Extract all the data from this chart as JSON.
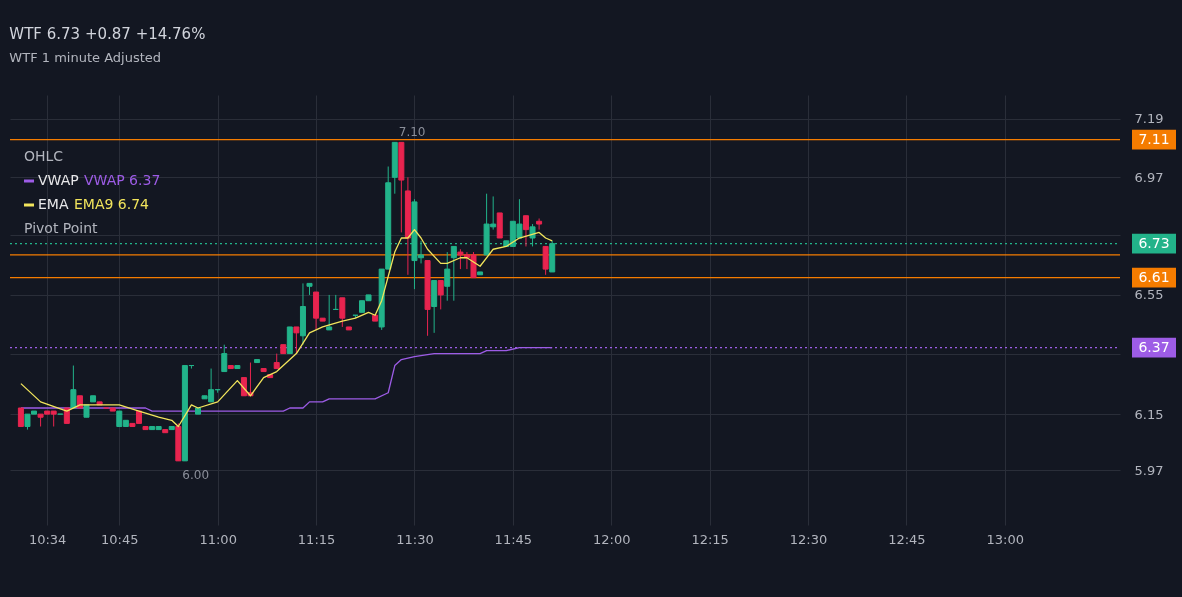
{
  "chart_data": {
    "type": "candlestick",
    "title": "WTF 6.73 +0.87 +14.76%",
    "subtitle": "WTF  1 minute  Adjusted",
    "x": [
      10.5,
      10.5167,
      10.5333,
      10.55,
      10.5667,
      10.5833,
      10.6,
      10.6167,
      10.6333,
      10.65,
      10.6667,
      10.6833,
      10.7,
      10.7167,
      10.7333,
      10.75,
      10.7667,
      10.7833,
      10.8,
      10.8167,
      10.8333,
      10.85,
      10.8667,
      10.8833,
      10.9,
      10.9167,
      10.9333,
      10.95,
      10.9667,
      10.9833,
      11,
      11.0167,
      11.0333,
      11.05,
      11.0667,
      11.0833,
      11.1,
      11.1167,
      11.1333,
      11.15,
      11.1667,
      11.1833,
      11.2,
      11.2167,
      11.2333,
      11.25,
      11.2667,
      11.2833,
      11.3,
      11.3167,
      11.3333,
      11.35,
      11.3667,
      11.3833,
      11.4,
      11.4167,
      11.4333,
      11.45,
      11.4667,
      11.4833,
      11.5,
      11.5167,
      11.5333,
      11.55,
      11.5667,
      11.5833,
      11.6,
      11.6167,
      11.6333,
      11.65,
      11.6667,
      11.6833,
      11.7,
      11.7167,
      11.7333,
      11.75,
      11.7667,
      11.7833,
      11.8,
      11.8167,
      11.8333,
      11.85
    ],
    "ohlc": [
      [
        6.17,
        6.17,
        6.11,
        6.11
      ],
      [
        6.11,
        6.15,
        6.1,
        6.15
      ],
      [
        6.15,
        6.16,
        6.15,
        6.16
      ],
      [
        6.15,
        6.15,
        6.11,
        6.14
      ],
      [
        6.16,
        6.16,
        6.15,
        6.15
      ],
      [
        6.16,
        6.16,
        6.11,
        6.15
      ],
      [
        6.15,
        6.15,
        6.15,
        6.15
      ],
      [
        6.17,
        6.17,
        6.12,
        6.12
      ],
      [
        6.17,
        6.31,
        6.17,
        6.23
      ],
      [
        6.21,
        6.21,
        6.17,
        6.17
      ],
      [
        6.14,
        6.18,
        6.14,
        6.18
      ],
      [
        6.19,
        6.21,
        6.19,
        6.21
      ],
      [
        6.19,
        6.19,
        6.18,
        6.18
      ],
      [
        6.17,
        6.17,
        6.17,
        6.17
      ],
      [
        6.17,
        6.17,
        6.16,
        6.16
      ],
      [
        6.11,
        6.16,
        6.11,
        6.16
      ],
      [
        6.11,
        6.13,
        6.11,
        6.13
      ],
      [
        6.12,
        6.12,
        6.11,
        6.11
      ],
      [
        6.16,
        6.16,
        6.12,
        6.12
      ],
      [
        6.11,
        6.11,
        6.1,
        6.1
      ],
      [
        6.1,
        6.11,
        6.1,
        6.11
      ],
      [
        6.1,
        6.11,
        6.1,
        6.11
      ],
      [
        6.1,
        6.1,
        6.09,
        6.09
      ],
      [
        6.1,
        6.11,
        6.1,
        6.11
      ],
      [
        6.11,
        6.12,
        6.0,
        6.0
      ],
      [
        6.0,
        6.31,
        6.0,
        6.31
      ],
      [
        6.31,
        6.31,
        6.3,
        6.31
      ],
      [
        6.15,
        6.17,
        6.15,
        6.17
      ],
      [
        6.2,
        6.21,
        6.2,
        6.21
      ],
      [
        6.19,
        6.3,
        6.19,
        6.23
      ],
      [
        6.23,
        6.23,
        6.22,
        6.23
      ],
      [
        6.29,
        6.38,
        6.29,
        6.35
      ],
      [
        6.31,
        6.31,
        6.3,
        6.3
      ],
      [
        6.3,
        6.31,
        6.3,
        6.31
      ],
      [
        6.27,
        6.27,
        6.21,
        6.21
      ],
      [
        6.22,
        6.32,
        6.21,
        6.21
      ],
      [
        6.32,
        6.33,
        6.32,
        6.33
      ],
      [
        6.3,
        6.3,
        6.29,
        6.29
      ],
      [
        6.28,
        6.28,
        6.27,
        6.27
      ],
      [
        6.32,
        6.35,
        6.3,
        6.3
      ],
      [
        6.38,
        6.38,
        6.35,
        6.35
      ],
      [
        6.35,
        6.44,
        6.35,
        6.44
      ],
      [
        6.44,
        6.44,
        6.35,
        6.42
      ],
      [
        6.41,
        6.59,
        6.38,
        6.51
      ],
      [
        6.58,
        6.59,
        6.55,
        6.59
      ],
      [
        6.56,
        6.56,
        6.43,
        6.47
      ],
      [
        6.47,
        6.47,
        6.46,
        6.46
      ],
      [
        6.43,
        6.55,
        6.43,
        6.44
      ],
      [
        6.5,
        6.55,
        6.5,
        6.5
      ],
      [
        6.54,
        6.54,
        6.44,
        6.47
      ],
      [
        6.44,
        6.44,
        6.43,
        6.43
      ],
      [
        6.48,
        6.48,
        6.47,
        6.48
      ],
      [
        6.49,
        6.53,
        6.49,
        6.53
      ],
      [
        6.53,
        6.55,
        6.53,
        6.55
      ],
      [
        6.48,
        6.48,
        6.46,
        6.46
      ],
      [
        6.44,
        6.64,
        6.43,
        6.64
      ],
      [
        6.64,
        7.01,
        6.64,
        6.95
      ],
      [
        6.97,
        7.1,
        6.91,
        7.1
      ],
      [
        7.1,
        7.1,
        6.77,
        6.96
      ],
      [
        6.92,
        6.97,
        6.62,
        6.75
      ],
      [
        6.67,
        6.89,
        6.57,
        6.88
      ],
      [
        6.68,
        6.74,
        6.66,
        6.69
      ],
      [
        6.67,
        6.67,
        6.41,
        6.5
      ],
      [
        6.51,
        6.6,
        6.42,
        6.6
      ],
      [
        6.6,
        6.6,
        6.5,
        6.55
      ],
      [
        6.58,
        6.7,
        6.53,
        6.64
      ],
      [
        6.68,
        6.72,
        6.53,
        6.72
      ],
      [
        6.7,
        6.71,
        6.64,
        6.69
      ],
      [
        6.69,
        6.7,
        6.64,
        6.68
      ],
      [
        6.69,
        6.7,
        6.61,
        6.61
      ],
      [
        6.62,
        6.63,
        6.62,
        6.63
      ],
      [
        6.69,
        6.91,
        6.69,
        6.8
      ],
      [
        6.79,
        6.9,
        6.78,
        6.8
      ],
      [
        6.84,
        6.84,
        6.75,
        6.75
      ],
      [
        6.72,
        6.74,
        6.72,
        6.74
      ],
      [
        6.72,
        6.81,
        6.72,
        6.81
      ],
      [
        6.75,
        6.89,
        6.75,
        6.8
      ],
      [
        6.83,
        6.83,
        6.72,
        6.78
      ],
      [
        6.75,
        6.8,
        6.72,
        6.79
      ],
      [
        6.81,
        6.82,
        6.78,
        6.8
      ],
      [
        6.72,
        6.72,
        6.62,
        6.64
      ],
      [
        6.63,
        6.74,
        6.63,
        6.73
      ]
    ],
    "colors": [
      "#e8244f",
      "#22b38a",
      "#22b38a",
      "#e8244f",
      "#e8244f",
      "#e8244f",
      "#22b38a",
      "#e8244f",
      "#22b38a",
      "#e8244f",
      "#22b38a",
      "#22b38a",
      "#e8244f",
      "#e8244f",
      "#e8244f",
      "#22b38a",
      "#22b38a",
      "#e8244f",
      "#e8244f",
      "#e8244f",
      "#22b38a",
      "#22b38a",
      "#e8244f",
      "#22b38a",
      "#e8244f",
      "#22b38a",
      "#22b38a",
      "#22b38a",
      "#22b38a",
      "#22b38a",
      "#22b38a",
      "#22b38a",
      "#e8244f",
      "#22b38a",
      "#e8244f",
      "#e8244f",
      "#22b38a",
      "#e8244f",
      "#e8244f",
      "#e8244f",
      "#e8244f",
      "#22b38a",
      "#e8244f",
      "#22b38a",
      "#22b38a",
      "#e8244f",
      "#e8244f",
      "#22b38a",
      "#22b38a",
      "#e8244f",
      "#e8244f",
      "#22b38a",
      "#22b38a",
      "#22b38a",
      "#e8244f",
      "#22b38a",
      "#22b38a",
      "#22b38a",
      "#e8244f",
      "#e8244f",
      "#22b38a",
      "#22b38a",
      "#e8244f",
      "#22b38a",
      "#e8244f",
      "#22b38a",
      "#22b38a",
      "#e8244f",
      "#e8244f",
      "#e8244f",
      "#22b38a",
      "#22b38a",
      "#22b38a",
      "#e8244f",
      "#22b38a",
      "#22b38a",
      "#22b38a",
      "#e8244f",
      "#22b38a",
      "#e8244f",
      "#e8244f",
      "#22b38a"
    ],
    "series": [
      {
        "name": "VWAP",
        "type": "line",
        "color": "#9d5ce6",
        "x": [
          10.5,
          10.8167,
          10.8333,
          11.1667,
          11.1833,
          11.2167,
          11.2333,
          11.2667,
          11.2833,
          11.4,
          11.4333,
          11.45,
          11.4667,
          11.5,
          11.55,
          11.6667,
          11.6833,
          11.7333,
          11.7667,
          11.85
        ],
        "values": [
          6.17,
          6.17,
          6.16,
          6.16,
          6.17,
          6.17,
          6.19,
          6.19,
          6.2,
          6.2,
          6.22,
          6.31,
          6.33,
          6.34,
          6.35,
          6.35,
          6.36,
          6.36,
          6.37,
          6.37
        ]
      },
      {
        "name": "EMA",
        "type": "line",
        "color": "#f2e55c",
        "x": [
          10.5,
          10.55,
          10.6167,
          10.65,
          10.7,
          10.75,
          10.8,
          10.85,
          10.8833,
          10.9,
          10.9333,
          10.95,
          11,
          11.05,
          11.0833,
          11.1167,
          11.15,
          11.1833,
          11.2,
          11.2333,
          11.2667,
          11.3167,
          11.35,
          11.3833,
          11.4,
          11.4167,
          11.45,
          11.4667,
          11.4833,
          11.5,
          11.5167,
          11.5333,
          11.5667,
          11.5833,
          11.6167,
          11.6333,
          11.6667,
          11.7,
          11.7333,
          11.7667,
          11.8167,
          11.8333,
          11.85
        ],
        "values": [
          6.25,
          6.19,
          6.16,
          6.18,
          6.18,
          6.18,
          6.16,
          6.14,
          6.13,
          6.11,
          6.18,
          6.17,
          6.19,
          6.26,
          6.21,
          6.27,
          6.29,
          6.33,
          6.35,
          6.42,
          6.44,
          6.46,
          6.47,
          6.49,
          6.48,
          6.53,
          6.7,
          6.75,
          6.75,
          6.78,
          6.75,
          6.71,
          6.66,
          6.66,
          6.68,
          6.68,
          6.65,
          6.71,
          6.72,
          6.75,
          6.77,
          6.75,
          6.74
        ]
      }
    ],
    "ref_lines": [
      {
        "axis": "y",
        "value": 7.11,
        "label": "7.11",
        "color": "#f57c00",
        "line_style": "solid"
      },
      {
        "axis": "y",
        "value": 6.69,
        "label": null,
        "color": "#f57c00",
        "line_style": "solid"
      },
      {
        "axis": "y",
        "value": 6.61,
        "label": "6.61",
        "color": "#f57c00",
        "line_style": "solid"
      },
      {
        "axis": "y",
        "value": 6.73,
        "label": "6.73",
        "color": "#22b38a",
        "line_style": "dotted"
      },
      {
        "axis": "y",
        "value": 6.37,
        "label": "6.37",
        "color": "#9d5ce6",
        "line_style": "dotted"
      }
    ],
    "annotations": [
      "OHLC",
      "VWAP 6.37",
      "EMA9 6.74",
      "Pivot Point",
      {
        "text": "7.10",
        "x": 11.45,
        "y": 7.1
      },
      {
        "text": "6.00",
        "x": 10.9,
        "y": 6.0
      }
    ],
    "xlim": [
      10.485,
      13.28
    ],
    "xticks": [
      {
        "value": 10.5667,
        "label": "10:34"
      },
      {
        "value": 10.75,
        "label": "10:45"
      },
      {
        "value": 11,
        "label": "11:00"
      },
      {
        "value": 11.25,
        "label": "11:15"
      },
      {
        "value": 11.5,
        "label": "11:30"
      },
      {
        "value": 11.75,
        "label": "11:45"
      },
      {
        "value": 12,
        "label": "12:00"
      },
      {
        "value": 12.25,
        "label": "12:15"
      },
      {
        "value": 12.5,
        "label": "12:30"
      },
      {
        "value": 12.75,
        "label": "12:45"
      },
      {
        "value": 13,
        "label": "13:00"
      }
    ],
    "ylim": [
      5.8,
      7.28
    ],
    "yticks": [
      7.19,
      6.97,
      {
        "value": 6.76,
        "label": null
      },
      6.55,
      {
        "value": 6.35,
        "label": null
      },
      6.15,
      5.97
    ],
    "log": true,
    "grid": true,
    "legend": "top left"
  }
}
